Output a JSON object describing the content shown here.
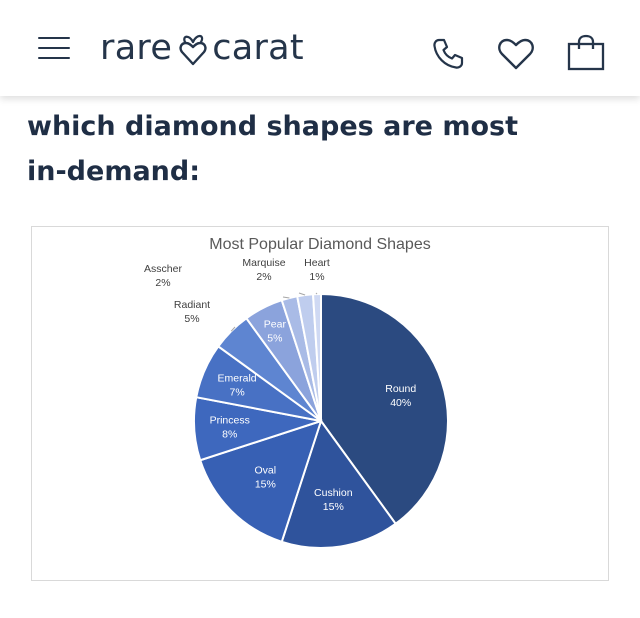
{
  "header": {
    "brand_left": "rare",
    "brand_right": "carat",
    "icons": [
      "menu-icon",
      "carrot-heart-logo-icon",
      "phone-icon",
      "heart-icon",
      "shopping-bag-icon"
    ]
  },
  "headline": "which diamond shapes are most in-demand:",
  "colors": {
    "text_dark": "#1f2e45",
    "slices": [
      "#2b4a80",
      "#2f539c",
      "#3760b4",
      "#3e68be",
      "#4871c4",
      "#5e85d1",
      "#8ba3dc",
      "#a9bbe6",
      "#bfcdee",
      "#cfd9f3"
    ]
  },
  "chart_data": {
    "type": "pie",
    "title": "Most Popular Diamond Shapes",
    "slices": [
      {
        "label": "Round",
        "value": 40,
        "pct": "40%"
      },
      {
        "label": "Cushion",
        "value": 15,
        "pct": "15%"
      },
      {
        "label": "Oval",
        "value": 15,
        "pct": "15%"
      },
      {
        "label": "Princess",
        "value": 8,
        "pct": "8%"
      },
      {
        "label": "Emerald",
        "value": 7,
        "pct": "7%"
      },
      {
        "label": "Radiant",
        "value": 5,
        "pct": "5%"
      },
      {
        "label": "Pear",
        "value": 5,
        "pct": "5%"
      },
      {
        "label": "Asscher",
        "value": 2,
        "pct": "2%"
      },
      {
        "label": "Marquise",
        "value": 2,
        "pct": "2%"
      },
      {
        "label": "Heart",
        "value": 1,
        "pct": "1%"
      }
    ]
  }
}
